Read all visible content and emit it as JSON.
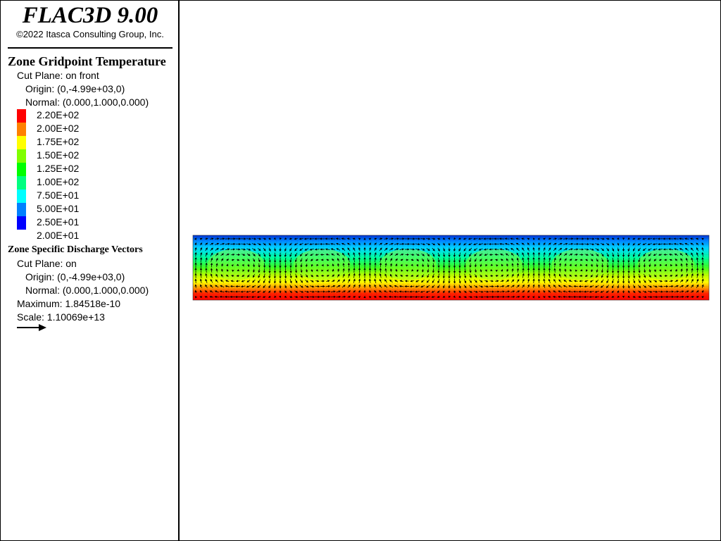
{
  "app": {
    "title": "FLAC3D 9.00",
    "copyright": "©2022 Itasca Consulting Group, Inc."
  },
  "temperature_legend": {
    "title": "Zone Gridpoint Temperature",
    "cut_plane": "Cut Plane: on front",
    "origin": "Origin: (0,-4.99e+03,0)",
    "normal": "Normal: (0.000,1.000,0.000)",
    "scale": [
      {
        "label": "2.20E+02",
        "color": "#ff0000"
      },
      {
        "label": "2.00E+02",
        "color": "#ff8000"
      },
      {
        "label": "1.75E+02",
        "color": "#ffff00"
      },
      {
        "label": "1.50E+02",
        "color": "#80ff00"
      },
      {
        "label": "1.25E+02",
        "color": "#00ff00"
      },
      {
        "label": "1.00E+02",
        "color": "#00ff80"
      },
      {
        "label": "7.50E+01",
        "color": "#00ffff"
      },
      {
        "label": "5.00E+01",
        "color": "#0080ff"
      },
      {
        "label": "2.50E+01",
        "color": "#0000ff"
      },
      {
        "label": "2.00E+01",
        "color": ""
      }
    ]
  },
  "vector_legend": {
    "title": "Zone Specific Discharge Vectors",
    "cut_plane": "Cut Plane: on",
    "origin": "Origin: (0,-4.99e+03,0)",
    "normal": "Normal: (0.000,1.000,0.000)",
    "maximum": "Maximum: 1.84518e-10",
    "scale": "Scale: 1.10069e+13",
    "arrow_icon": "arrow-right-icon"
  },
  "plot": {
    "convection_cells": 6,
    "grid": true,
    "colormap": "temperature, blue at top to red at bottom"
  }
}
